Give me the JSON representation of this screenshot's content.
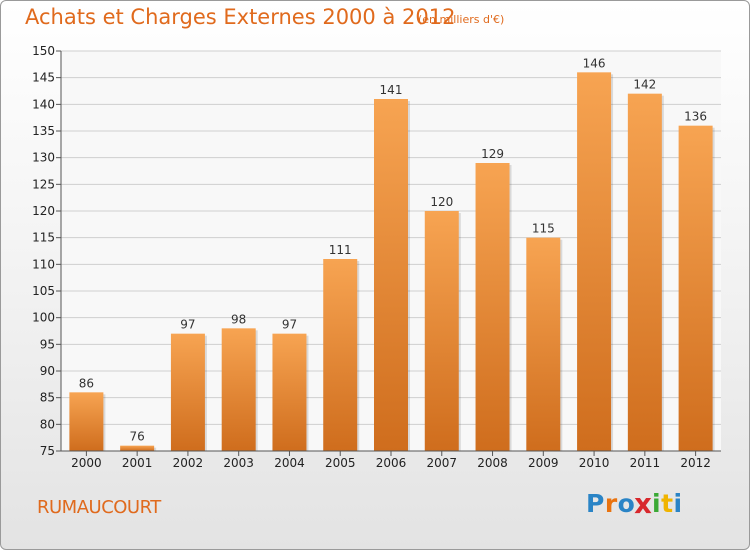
{
  "title": "Achats et Charges Externes 2000 à 2012",
  "subtitle": "(en milliers d'€)",
  "place": "RUMAUCOURT",
  "logo": {
    "letters": [
      "P",
      "r",
      "o",
      "x",
      "i",
      "t",
      "i"
    ],
    "colors": [
      "#2a84c6",
      "#e9730f",
      "#2a84c6",
      "#d8282d",
      "#3aa935",
      "#f0b400",
      "#2a84c6"
    ]
  },
  "colors": {
    "bar_top": "#f7a452",
    "bar_bottom": "#cf6d1d",
    "text_accent": "#e06a1d"
  },
  "chart_data": {
    "type": "bar",
    "title": "Achats et Charges Externes 2000 à 2012",
    "subtitle": "(en milliers d'€)",
    "xlabel": "",
    "ylabel": "",
    "categories": [
      "2000",
      "2001",
      "2002",
      "2003",
      "2004",
      "2005",
      "2006",
      "2007",
      "2008",
      "2009",
      "2010",
      "2011",
      "2012"
    ],
    "values": [
      86,
      76,
      97,
      98,
      97,
      111,
      141,
      120,
      129,
      115,
      146,
      142,
      136
    ],
    "ylim": [
      75,
      150
    ],
    "yticks": [
      75,
      80,
      85,
      90,
      95,
      100,
      105,
      110,
      115,
      120,
      125,
      130,
      135,
      140,
      145,
      150
    ],
    "grid": true,
    "legend": "none"
  }
}
